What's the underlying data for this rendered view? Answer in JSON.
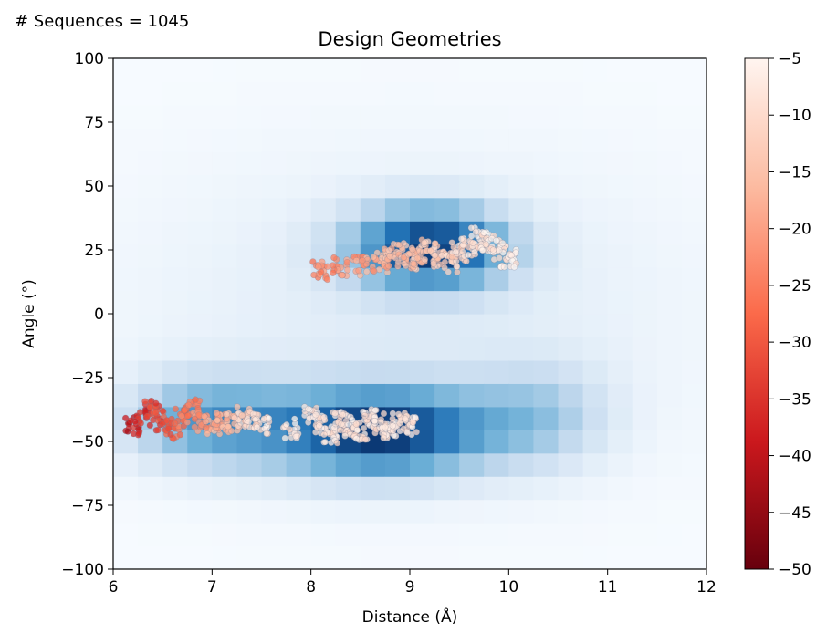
{
  "header": {
    "sequence_count": "# Sequences = 1045"
  },
  "chart_data": {
    "type": "heatmap",
    "title": "Design Geometries",
    "xlabel": "Distance (Å)",
    "ylabel": "Angle (°)",
    "xlim": [
      6,
      12
    ],
    "ylim": [
      -100,
      100
    ],
    "x_ticks": [
      "6",
      "7",
      "8",
      "9",
      "10",
      "11",
      "12"
    ],
    "y_ticks": [
      "100",
      "75",
      "50",
      "25",
      "0",
      "−25",
      "−50",
      "−75",
      "−100"
    ],
    "background_density": {
      "colormap": "Blues",
      "description_regions": [
        {
          "x_center": 9.3,
          "y_center": 25,
          "x_range": [
            8.2,
            10.8
          ],
          "y_range": [
            5,
            50
          ]
        },
        {
          "x_center": 8.5,
          "y_center": -45,
          "x_range": [
            6.1,
            10.8
          ],
          "y_range": [
            -75,
            -15
          ]
        }
      ]
    },
    "scatter_series": [
      {
        "cluster": "upper",
        "points_x": [
          8.1,
          8.3,
          8.5,
          8.7,
          8.8,
          8.9,
          9.0,
          9.1,
          9.2,
          9.3,
          9.4,
          9.5,
          9.6,
          9.7,
          9.8,
          9.9,
          10.0
        ],
        "points_y": [
          17,
          18,
          19,
          20,
          22,
          24,
          21,
          23,
          25,
          22,
          20,
          24,
          26,
          30,
          28,
          25,
          22
        ]
      },
      {
        "cluster": "lower-left",
        "points_x": [
          6.2,
          6.3,
          6.4,
          6.5,
          6.6,
          6.7,
          6.8,
          6.9,
          7.0,
          7.1,
          7.2,
          7.3,
          7.4,
          7.5
        ],
        "points_y": [
          -44,
          -40,
          -38,
          -42,
          -45,
          -40,
          -37,
          -42,
          -44,
          -41,
          -43,
          -40,
          -42,
          -44
        ]
      },
      {
        "cluster": "lower-right",
        "points_x": [
          7.8,
          8.0,
          8.1,
          8.2,
          8.3,
          8.4,
          8.5,
          8.6,
          8.7,
          8.8,
          8.9,
          9.0
        ],
        "points_y": [
          -45,
          -40,
          -43,
          -48,
          -42,
          -44,
          -46,
          -41,
          -43,
          -45,
          -42,
          -44
        ]
      }
    ],
    "colorbar": {
      "colormap": "Reds_r",
      "vmin": -50,
      "vmax": -5,
      "ticks": [
        "−5",
        "−10",
        "−15",
        "−20",
        "−25",
        "−30",
        "−35",
        "−40",
        "−45",
        "−50"
      ]
    }
  }
}
